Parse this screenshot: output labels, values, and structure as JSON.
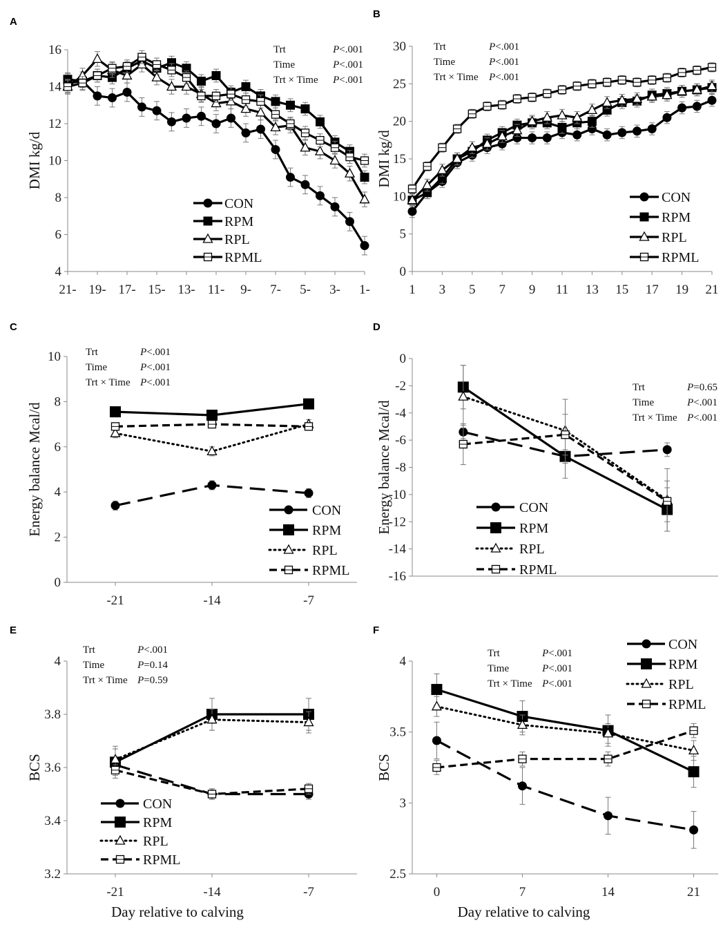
{
  "chart_data": [
    {
      "panel": "A",
      "type": "line",
      "ylabel": "DMI kg/d",
      "xlabel": "",
      "ylim": [
        4,
        16
      ],
      "yticks": [
        4,
        6,
        8,
        10,
        12,
        14,
        16
      ],
      "x_range": [
        -21,
        -1
      ],
      "xticks": [
        -21,
        -19,
        -17,
        -15,
        -13,
        -11,
        -9,
        -7,
        -5,
        -3,
        -1
      ],
      "xtick_labels": [
        "21-",
        "19-",
        "17-",
        "15-",
        "13-",
        "11-",
        "9-",
        "7-",
        "5-",
        "3-",
        "1-"
      ],
      "stats": [
        [
          "Trt",
          "P<.001"
        ],
        [
          "Time",
          "P<.001"
        ],
        [
          "Trt × Time",
          "P<.001"
        ]
      ],
      "legend": [
        {
          "name": "CON",
          "marker": "circle",
          "dash": "solid"
        },
        {
          "name": "RPM",
          "marker": "square",
          "dash": "solid"
        },
        {
          "name": "RPL",
          "marker": "triangle-open",
          "dash": "solid"
        },
        {
          "name": "RPML",
          "marker": "square-open",
          "dash": "solid"
        }
      ],
      "series": [
        {
          "name": "CON",
          "x": [
            -21,
            -20,
            -19,
            -18,
            -17,
            -16,
            -15,
            -14,
            -13,
            -12,
            -11,
            -10,
            -9,
            -8,
            -7,
            -6,
            -5,
            -4,
            -3,
            -2,
            -1
          ],
          "values": [
            14.2,
            14.3,
            13.5,
            13.4,
            13.7,
            12.9,
            12.7,
            12.1,
            12.3,
            12.4,
            12.0,
            12.3,
            11.5,
            11.7,
            10.6,
            9.1,
            8.7,
            8.1,
            7.5,
            6.7,
            5.4
          ],
          "err": 0.5
        },
        {
          "name": "RPM",
          "x": [
            -21,
            -20,
            -19,
            -18,
            -17,
            -16,
            -15,
            -14,
            -13,
            -12,
            -11,
            -10,
            -9,
            -8,
            -7,
            -6,
            -5,
            -4,
            -3,
            -2,
            -1
          ],
          "values": [
            14.4,
            14.3,
            14.6,
            14.5,
            15.0,
            15.4,
            15.0,
            15.3,
            15.0,
            14.3,
            14.6,
            13.7,
            14.0,
            13.5,
            13.2,
            13.0,
            12.8,
            12.1,
            11.0,
            10.5,
            9.1
          ],
          "err": 0.35
        },
        {
          "name": "RPL",
          "x": [
            -21,
            -20,
            -19,
            -18,
            -17,
            -16,
            -15,
            -14,
            -13,
            -12,
            -11,
            -10,
            -9,
            -8,
            -7,
            -6,
            -5,
            -4,
            -3,
            -2,
            -1
          ],
          "values": [
            14.0,
            14.6,
            15.5,
            14.9,
            14.6,
            15.2,
            14.5,
            14.0,
            14.0,
            13.6,
            13.1,
            13.2,
            12.8,
            12.6,
            11.8,
            11.9,
            10.7,
            10.5,
            10.0,
            9.3,
            7.9
          ],
          "err": 0.4
        },
        {
          "name": "RPML",
          "x": [
            -21,
            -20,
            -19,
            -18,
            -17,
            -16,
            -15,
            -14,
            -13,
            -12,
            -11,
            -10,
            -9,
            -8,
            -7,
            -6,
            -5,
            -4,
            -3,
            -2,
            -1
          ],
          "values": [
            14.0,
            14.2,
            14.6,
            15.0,
            15.1,
            15.6,
            15.2,
            14.9,
            14.5,
            13.5,
            13.5,
            13.6,
            13.3,
            13.2,
            12.5,
            12.0,
            11.5,
            11.1,
            10.7,
            10.2,
            10.0
          ],
          "err": 0.35
        }
      ]
    },
    {
      "panel": "B",
      "type": "line",
      "ylabel": "DMI kg/d",
      "xlabel": "",
      "ylim": [
        0,
        30
      ],
      "yticks": [
        0,
        5,
        10,
        15,
        20,
        25,
        30
      ],
      "x_range": [
        1,
        21
      ],
      "xticks": [
        1,
        3,
        5,
        7,
        9,
        11,
        13,
        15,
        17,
        19,
        21
      ],
      "xtick_labels": [
        "1",
        "3",
        "5",
        "7",
        "9",
        "11",
        "13",
        "15",
        "17",
        "19",
        "21"
      ],
      "stats": [
        [
          "Trt",
          "P<.001"
        ],
        [
          "Time",
          "P<.001"
        ],
        [
          "Trt × Time",
          "P<.001"
        ]
      ],
      "legend": [
        {
          "name": "CON",
          "marker": "circle",
          "dash": "solid"
        },
        {
          "name": "RPM",
          "marker": "square",
          "dash": "solid"
        },
        {
          "name": "RPL",
          "marker": "triangle-open",
          "dash": "solid"
        },
        {
          "name": "RPML",
          "marker": "square-open",
          "dash": "solid"
        }
      ],
      "series": [
        {
          "name": "CON",
          "x": [
            1,
            2,
            3,
            4,
            5,
            6,
            7,
            8,
            9,
            10,
            11,
            12,
            13,
            14,
            15,
            16,
            17,
            18,
            19,
            20,
            21
          ],
          "values": [
            8.0,
            10.5,
            12.0,
            14.5,
            15.5,
            16.5,
            17.0,
            17.8,
            17.8,
            17.8,
            18.5,
            18.2,
            19.0,
            18.2,
            18.5,
            18.7,
            19.0,
            20.5,
            21.8,
            22.0,
            22.8
          ],
          "err": 0.8
        },
        {
          "name": "RPM",
          "x": [
            1,
            2,
            3,
            4,
            5,
            6,
            7,
            8,
            9,
            10,
            11,
            12,
            13,
            14,
            15,
            16,
            17,
            18,
            19,
            20,
            21
          ],
          "values": [
            9.5,
            10.5,
            12.5,
            15.0,
            16.0,
            17.5,
            18.5,
            19.5,
            19.8,
            19.8,
            19.2,
            19.8,
            20.0,
            21.5,
            22.5,
            22.7,
            23.5,
            23.7,
            24.0,
            24.2,
            24.5
          ],
          "err": 0.8
        },
        {
          "name": "RPL",
          "x": [
            1,
            2,
            3,
            4,
            5,
            6,
            7,
            8,
            9,
            10,
            11,
            12,
            13,
            14,
            15,
            16,
            17,
            18,
            19,
            20,
            21
          ],
          "values": [
            9.5,
            11.5,
            13.5,
            15.0,
            16.5,
            17.0,
            18.0,
            18.8,
            20.0,
            20.5,
            20.8,
            20.5,
            21.5,
            22.5,
            22.8,
            23.0,
            23.3,
            23.5,
            24.0,
            24.2,
            24.7
          ],
          "err": 0.8
        },
        {
          "name": "RPML",
          "x": [
            1,
            2,
            3,
            4,
            5,
            6,
            7,
            8,
            9,
            10,
            11,
            12,
            13,
            14,
            15,
            16,
            17,
            18,
            19,
            20,
            21
          ],
          "values": [
            11.0,
            14.0,
            16.5,
            19.0,
            21.0,
            22.0,
            22.2,
            23.0,
            23.2,
            23.7,
            24.2,
            24.7,
            25.0,
            25.2,
            25.5,
            25.2,
            25.5,
            25.8,
            26.5,
            26.8,
            27.2
          ],
          "err": 0.6
        }
      ]
    },
    {
      "panel": "C",
      "type": "line",
      "ylabel": "Energy balance Mcal/d",
      "xlabel": "",
      "ylim": [
        0,
        10
      ],
      "yticks": [
        0,
        2,
        4,
        6,
        8,
        10
      ],
      "x_range": [
        -24.5,
        -3.5
      ],
      "xticks": [
        -21,
        -14,
        -7
      ],
      "xtick_labels": [
        "-21",
        "-14",
        "-7"
      ],
      "stats": [
        [
          "Trt",
          "P<.001"
        ],
        [
          "Time",
          "P<.001"
        ],
        [
          "Trt × Time",
          "P<.001"
        ]
      ],
      "legend": [
        {
          "name": "CON",
          "marker": "circle",
          "dash": "longdash"
        },
        {
          "name": "RPM",
          "marker": "square-large",
          "dash": "solid"
        },
        {
          "name": "RPL",
          "marker": "triangle-open",
          "dash": "dotted"
        },
        {
          "name": "RPML",
          "marker": "square-open",
          "dash": "shortdash"
        }
      ],
      "series": [
        {
          "name": "CON",
          "x": [
            -21,
            -14,
            -7
          ],
          "values": [
            3.4,
            4.3,
            3.95
          ],
          "err": 0.2
        },
        {
          "name": "RPM",
          "x": [
            -21,
            -14,
            -7
          ],
          "values": [
            7.55,
            7.4,
            7.9
          ],
          "err": 0.15
        },
        {
          "name": "RPL",
          "x": [
            -21,
            -14,
            -7
          ],
          "values": [
            6.6,
            5.8,
            7.0
          ],
          "err": 0.2
        },
        {
          "name": "RPML",
          "x": [
            -21,
            -14,
            -7
          ],
          "values": [
            6.9,
            7.0,
            6.9
          ],
          "err": 0.15
        }
      ]
    },
    {
      "panel": "D",
      "type": "line",
      "ylabel": "Energy balance Mcal/d",
      "xlabel": "",
      "ylim": [
        -16,
        0
      ],
      "yticks": [
        0,
        -2,
        -4,
        -6,
        -8,
        -10,
        -12,
        -14,
        -16
      ],
      "x_range": [
        0,
        21
      ],
      "xticks": [],
      "xtick_labels": [],
      "stats": [
        [
          "Trt",
          "P=0.65"
        ],
        [
          "Time",
          "P<.001"
        ],
        [
          "Trt × Time",
          "P<.001"
        ]
      ],
      "legend": [
        {
          "name": "CON",
          "marker": "circle",
          "dash": "longdash"
        },
        {
          "name": "RPM",
          "marker": "square-large",
          "dash": "solid"
        },
        {
          "name": "RPL",
          "marker": "triangle-open",
          "dash": "dotted"
        },
        {
          "name": "RPML",
          "marker": "square-open",
          "dash": "shortdash"
        }
      ],
      "series": [
        {
          "name": "CON",
          "x": [
            3.5,
            10.5,
            17.5
          ],
          "values": [
            -5.4,
            -7.2,
            -6.7
          ],
          "err": 0.5
        },
        {
          "name": "RPM",
          "x": [
            3.5,
            10.5,
            17.5
          ],
          "values": [
            -2.1,
            -7.2,
            -11.1
          ],
          "err": 1.6
        },
        {
          "name": "RPL",
          "x": [
            3.5,
            10.5,
            17.5
          ],
          "values": [
            -2.8,
            -5.3,
            -10.4
          ],
          "err": 2.3
        },
        {
          "name": "RPML",
          "x": [
            3.5,
            10.5,
            17.5
          ],
          "values": [
            -6.3,
            -5.6,
            -10.5
          ],
          "err": 1.5
        }
      ]
    },
    {
      "panel": "E",
      "type": "line",
      "ylabel": "BCS",
      "xlabel": "Day relative to calving",
      "ylim": [
        3.2,
        4.0
      ],
      "yticks": [
        3.2,
        3.4,
        3.6,
        3.8,
        4.0
      ],
      "ytick_labels": [
        "3.2",
        "3.4",
        "3.6",
        "3.8",
        "4"
      ],
      "x_range": [
        -24.5,
        -3.5
      ],
      "xticks": [
        -21,
        -14,
        -7
      ],
      "xtick_labels": [
        "-21",
        "-14",
        "-7"
      ],
      "stats": [
        [
          "Trt",
          "P<.001"
        ],
        [
          "Time",
          "P=0.14"
        ],
        [
          "Trt × Time",
          "P=0.59"
        ]
      ],
      "legend": [
        {
          "name": "CON",
          "marker": "circle",
          "dash": "longdash"
        },
        {
          "name": "RPM",
          "marker": "square-large",
          "dash": "solid"
        },
        {
          "name": "RPL",
          "marker": "triangle-open",
          "dash": "dotted"
        },
        {
          "name": "RPML",
          "marker": "square-open",
          "dash": "shortdash"
        }
      ],
      "series": [
        {
          "name": "CON",
          "x": [
            -21,
            -14,
            -7
          ],
          "values": [
            3.61,
            3.5,
            3.5
          ],
          "err": 0.02
        },
        {
          "name": "RPM",
          "x": [
            -21,
            -14,
            -7
          ],
          "values": [
            3.62,
            3.8,
            3.8
          ],
          "err": 0.06
        },
        {
          "name": "RPL",
          "x": [
            -21,
            -14,
            -7
          ],
          "values": [
            3.63,
            3.78,
            3.77
          ],
          "err": 0.04
        },
        {
          "name": "RPML",
          "x": [
            -21,
            -14,
            -7
          ],
          "values": [
            3.59,
            3.5,
            3.52
          ],
          "err": 0.02
        }
      ]
    },
    {
      "panel": "F",
      "type": "line",
      "ylabel": "BCS",
      "xlabel": "Day relative to calving",
      "ylim": [
        2.5,
        4.0
      ],
      "yticks": [
        2.5,
        3.0,
        3.5,
        4.0
      ],
      "ytick_labels": [
        "2.5",
        "3",
        "3.5",
        "4"
      ],
      "x_range": [
        -2,
        23
      ],
      "xticks": [
        0,
        7,
        14,
        21
      ],
      "xtick_labels": [
        "0",
        "7",
        "14",
        "21"
      ],
      "stats": [
        [
          "Trt",
          "P<.001"
        ],
        [
          "Time",
          "P<.001"
        ],
        [
          "Trt × Time",
          "P<.001"
        ]
      ],
      "legend": [
        {
          "name": "CON",
          "marker": "circle",
          "dash": "longdash"
        },
        {
          "name": "RPM",
          "marker": "square-large",
          "dash": "solid"
        },
        {
          "name": "RPL",
          "marker": "triangle-open",
          "dash": "dotted"
        },
        {
          "name": "RPML",
          "marker": "square-open",
          "dash": "shortdash"
        }
      ],
      "series": [
        {
          "name": "CON",
          "x": [
            0,
            7,
            14,
            21
          ],
          "values": [
            3.44,
            3.12,
            2.91,
            2.81
          ],
          "err": 0.13
        },
        {
          "name": "RPM",
          "x": [
            0,
            7,
            14,
            21
          ],
          "values": [
            3.8,
            3.61,
            3.51,
            3.22
          ],
          "err": 0.11
        },
        {
          "name": "RPL",
          "x": [
            0,
            7,
            14,
            21
          ],
          "values": [
            3.68,
            3.55,
            3.49,
            3.37
          ],
          "err": 0.07
        },
        {
          "name": "RPML",
          "x": [
            0,
            7,
            14,
            21
          ],
          "values": [
            3.25,
            3.31,
            3.31,
            3.51
          ],
          "err": 0.05
        }
      ]
    }
  ]
}
